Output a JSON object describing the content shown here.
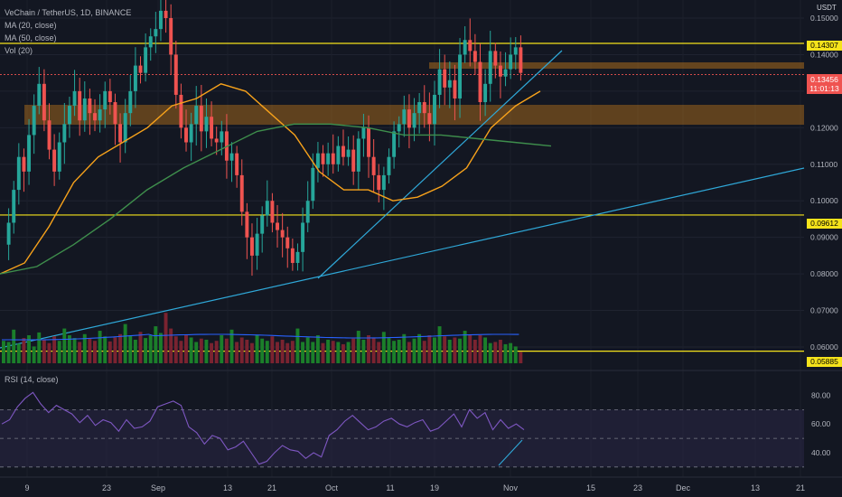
{
  "header": {
    "symbol_line": "VeChain / TetherUS, 1D, BINANCE",
    "ma20_label": "MA (20, close)",
    "ma50_label": "MA (50, close)",
    "vol_label": "Vol (20)",
    "rsi_label": "RSI (14, close)",
    "currency": "USDT"
  },
  "price_markers": {
    "resistance": "0.14307",
    "support_mid": "0.09612",
    "support_low": "0.05885",
    "last_price": "0.13456",
    "countdown": "11:01:13"
  },
  "colors": {
    "background": "#131722",
    "up": "#26a69a",
    "down": "#ef5350",
    "vol_up": "#1b7f2a",
    "vol_down": "#7a2330",
    "ma20": "#f7a21b",
    "ma50": "#3e8e4c",
    "vol_ma": "#2962ff",
    "trendline": "#2fa8d8",
    "level_line": "#f5e31b",
    "zone": "#c77d1a",
    "rsi_line": "#7e57c2",
    "rsi_band": "#2a2646"
  },
  "chart_data": [
    {
      "type": "candlestick",
      "title": "VeChain / TetherUS, 1D, BINANCE",
      "y_axis_ticks": [
        "0.15000",
        "0.14000",
        "0.13000",
        "0.12000",
        "0.11000",
        "0.10000",
        "0.09000",
        "0.08000",
        "0.07000",
        "0.06000"
      ],
      "ylim": [
        0.057,
        0.152
      ],
      "x_axis_ticks": [
        "9",
        "23",
        "Sep",
        "13",
        "21",
        "Oct",
        "11",
        "19",
        "Nov",
        "15",
        "23",
        "Dec",
        "13",
        "21"
      ],
      "close_path": [
        0.088,
        0.094,
        0.103,
        0.112,
        0.108,
        0.118,
        0.126,
        0.132,
        0.122,
        0.114,
        0.108,
        0.116,
        0.121,
        0.126,
        0.13,
        0.122,
        0.128,
        0.124,
        0.122,
        0.125,
        0.13,
        0.127,
        0.121,
        0.116,
        0.124,
        0.13,
        0.137,
        0.135,
        0.142,
        0.145,
        0.147,
        0.152,
        0.15,
        0.14,
        0.129,
        0.12,
        0.116,
        0.121,
        0.126,
        0.119,
        0.123,
        0.117,
        0.116,
        0.119,
        0.111,
        0.113,
        0.107,
        0.097,
        0.09,
        0.085,
        0.091,
        0.096,
        0.1,
        0.094,
        0.092,
        0.09,
        0.087,
        0.083,
        0.086,
        0.094,
        0.1,
        0.109,
        0.113,
        0.11,
        0.113,
        0.11,
        0.115,
        0.112,
        0.114,
        0.108,
        0.117,
        0.12,
        0.112,
        0.107,
        0.103,
        0.107,
        0.112,
        0.119,
        0.121,
        0.125,
        0.12,
        0.124,
        0.127,
        0.124,
        0.121,
        0.129,
        0.136,
        0.131,
        0.133,
        0.128,
        0.14,
        0.144,
        0.141,
        0.138,
        0.127,
        0.132,
        0.141,
        0.137,
        0.134,
        0.136,
        0.14,
        0.142,
        0.135
      ],
      "levels": [
        0.14307,
        0.09612,
        0.05885
      ],
      "last_price": 0.13456,
      "ma20": [
        0.08,
        0.083,
        0.093,
        0.105,
        0.112,
        0.116,
        0.12,
        0.126,
        0.128,
        0.132,
        0.13,
        0.124,
        0.118,
        0.108,
        0.103,
        0.103,
        0.1,
        0.101,
        0.104,
        0.109,
        0.12,
        0.126,
        0.13
      ],
      "ma50": [
        0.08,
        0.082,
        0.088,
        0.095,
        0.103,
        0.109,
        0.114,
        0.119,
        0.121,
        0.121,
        0.12,
        0.118,
        0.118,
        0.117,
        0.116,
        0.115
      ]
    },
    {
      "type": "bar",
      "title": "Vol (20)",
      "values_relative": [
        0.4,
        0.38,
        0.6,
        0.35,
        0.45,
        0.5,
        0.3,
        0.55,
        0.42,
        0.36,
        0.48,
        0.4,
        0.62,
        0.5,
        0.45,
        0.38,
        0.52,
        0.44,
        0.4,
        0.58,
        0.48,
        0.39,
        0.46,
        0.52,
        0.7,
        0.5,
        0.42,
        0.56,
        0.45,
        0.5,
        0.66,
        0.54,
        0.9,
        0.62,
        0.48,
        0.4,
        0.5,
        0.46,
        0.38,
        0.44,
        0.42,
        0.36,
        0.4,
        0.5,
        0.44,
        0.6,
        0.38,
        0.46,
        0.42,
        0.36,
        0.5,
        0.44,
        0.4,
        0.48,
        0.38,
        0.42,
        0.36,
        0.4,
        0.62,
        0.38,
        0.46,
        0.38,
        0.5,
        0.36,
        0.42,
        0.4,
        0.38,
        0.34,
        0.38,
        0.44,
        0.58,
        0.42,
        0.5,
        0.46,
        0.38,
        0.56,
        0.45,
        0.4,
        0.42,
        0.52,
        0.38,
        0.44,
        0.52,
        0.4,
        0.5,
        0.46,
        0.66,
        0.48,
        0.42,
        0.46,
        0.44,
        0.58,
        0.5,
        0.42,
        0.5,
        0.46,
        0.36,
        0.38,
        0.42,
        0.34,
        0.36,
        0.3,
        0.2
      ]
    },
    {
      "type": "line",
      "title": "RSI (14, close)",
      "y_axis_ticks": [
        "80.00",
        "60.00",
        "40.00"
      ],
      "ylim": [
        28,
        86
      ],
      "band": [
        30,
        70
      ],
      "values": [
        60,
        63,
        72,
        78,
        82,
        74,
        68,
        73,
        70,
        67,
        61,
        66,
        59,
        63,
        61,
        55,
        63,
        57,
        58,
        62,
        72,
        74,
        76,
        73,
        58,
        54,
        46,
        52,
        50,
        42,
        44,
        48,
        40,
        32,
        34,
        40,
        45,
        42,
        41,
        36,
        40,
        37,
        52,
        56,
        62,
        66,
        61,
        56,
        58,
        62,
        64,
        60,
        58,
        61,
        63,
        55,
        57,
        62,
        67,
        58,
        70,
        64,
        68,
        56,
        63,
        57,
        60,
        56
      ]
    }
  ]
}
